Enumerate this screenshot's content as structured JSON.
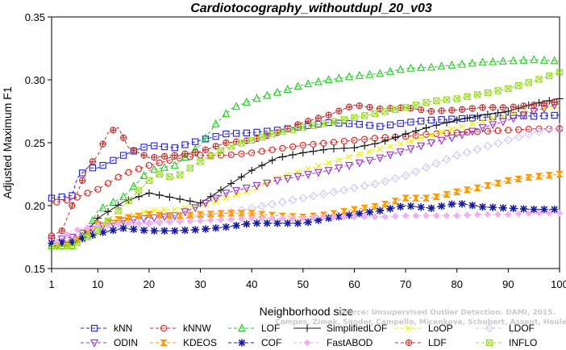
{
  "chart_data": {
    "type": "line",
    "title": "Cardiotocography_withoutdupl_20_v03",
    "xlabel": "Neighborhood size",
    "ylabel": "Adjusted Maximum F1",
    "xlim": [
      1,
      100
    ],
    "ylim": [
      0.15,
      0.35
    ],
    "xticks": [
      1,
      10,
      20,
      30,
      40,
      50,
      60,
      70,
      80,
      90,
      100
    ],
    "yticks": [
      0.15,
      0.2,
      0.25,
      0.3,
      0.35
    ],
    "xtick_labels": [
      "1",
      "10",
      "20",
      "30",
      "40",
      "50",
      "60",
      "70",
      "80",
      "90",
      "100"
    ],
    "ytick_labels": [
      "0.15",
      "0.20",
      "0.25",
      "0.30",
      "0.35"
    ],
    "grid": false,
    "legend_position": "bottom",
    "watermark": {
      "line1": "Source: Unsupervised Outlier Detection. DAMI, 2015.",
      "line2": "Campos, Zimek, Sander, Campello, Micenkova, Schubert, Assent, Houle"
    },
    "series": [
      {
        "name": "kNN",
        "color": "#1f1fe6",
        "marker": "square",
        "dash": "dashed",
        "points": [
          [
            1,
            0.206
          ],
          [
            5,
            0.208
          ],
          [
            6,
            0.222
          ],
          [
            8,
            0.23
          ],
          [
            10,
            0.23
          ],
          [
            15,
            0.24
          ],
          [
            18,
            0.245
          ],
          [
            20,
            0.248
          ],
          [
            25,
            0.246
          ],
          [
            30,
            0.252
          ],
          [
            35,
            0.257
          ],
          [
            40,
            0.258
          ],
          [
            45,
            0.26
          ],
          [
            50,
            0.263
          ],
          [
            55,
            0.266
          ],
          [
            60,
            0.265
          ],
          [
            65,
            0.263
          ],
          [
            70,
            0.266
          ],
          [
            75,
            0.268
          ],
          [
            80,
            0.269
          ],
          [
            85,
            0.27
          ],
          [
            90,
            0.272
          ],
          [
            95,
            0.271
          ],
          [
            100,
            0.272
          ]
        ]
      },
      {
        "name": "kNNW",
        "color": "#e62020",
        "marker": "circle",
        "dash": "dashed",
        "points": [
          [
            1,
            0.202
          ],
          [
            5,
            0.205
          ],
          [
            8,
            0.21
          ],
          [
            10,
            0.213
          ],
          [
            15,
            0.225
          ],
          [
            20,
            0.232
          ],
          [
            25,
            0.237
          ],
          [
            30,
            0.24
          ],
          [
            35,
            0.24
          ],
          [
            40,
            0.242
          ],
          [
            45,
            0.245
          ],
          [
            50,
            0.248
          ],
          [
            55,
            0.25
          ],
          [
            60,
            0.252
          ],
          [
            65,
            0.254
          ],
          [
            70,
            0.255
          ],
          [
            75,
            0.257
          ],
          [
            80,
            0.258
          ],
          [
            85,
            0.259
          ],
          [
            90,
            0.26
          ],
          [
            95,
            0.261
          ],
          [
            100,
            0.261
          ]
        ]
      },
      {
        "name": "LOF",
        "color": "#22cc22",
        "marker": "triangle-up",
        "dash": "dashed",
        "points": [
          [
            1,
            0.168
          ],
          [
            5,
            0.168
          ],
          [
            8,
            0.18
          ],
          [
            10,
            0.196
          ],
          [
            15,
            0.207
          ],
          [
            20,
            0.228
          ],
          [
            25,
            0.232
          ],
          [
            30,
            0.248
          ],
          [
            33,
            0.265
          ],
          [
            36,
            0.277
          ],
          [
            40,
            0.284
          ],
          [
            45,
            0.29
          ],
          [
            50,
            0.296
          ],
          [
            55,
            0.3
          ],
          [
            60,
            0.303
          ],
          [
            65,
            0.305
          ],
          [
            70,
            0.309
          ],
          [
            75,
            0.31
          ],
          [
            80,
            0.312
          ],
          [
            85,
            0.314
          ],
          [
            90,
            0.315
          ],
          [
            95,
            0.316
          ],
          [
            100,
            0.315
          ]
        ]
      },
      {
        "name": "SimplifiedLOF",
        "color": "#111111",
        "marker": "plus",
        "dash": "solid",
        "points": [
          [
            1,
            0.168
          ],
          [
            5,
            0.168
          ],
          [
            8,
            0.18
          ],
          [
            10,
            0.19
          ],
          [
            15,
            0.203
          ],
          [
            20,
            0.21
          ],
          [
            25,
            0.206
          ],
          [
            30,
            0.202
          ],
          [
            35,
            0.215
          ],
          [
            40,
            0.228
          ],
          [
            45,
            0.238
          ],
          [
            50,
            0.242
          ],
          [
            55,
            0.245
          ],
          [
            60,
            0.246
          ],
          [
            65,
            0.25
          ],
          [
            70,
            0.257
          ],
          [
            75,
            0.263
          ],
          [
            80,
            0.268
          ],
          [
            85,
            0.272
          ],
          [
            90,
            0.275
          ],
          [
            95,
            0.281
          ],
          [
            100,
            0.285
          ]
        ]
      },
      {
        "name": "LoOP",
        "color": "#f0f000",
        "marker": "cross",
        "dash": "dashed",
        "points": [
          [
            1,
            0.168
          ],
          [
            5,
            0.168
          ],
          [
            8,
            0.176
          ],
          [
            10,
            0.183
          ],
          [
            15,
            0.19
          ],
          [
            20,
            0.196
          ],
          [
            25,
            0.197
          ],
          [
            30,
            0.2
          ],
          [
            35,
            0.206
          ],
          [
            40,
            0.212
          ],
          [
            45,
            0.222
          ],
          [
            50,
            0.228
          ],
          [
            55,
            0.234
          ],
          [
            60,
            0.24
          ],
          [
            65,
            0.245
          ],
          [
            70,
            0.25
          ],
          [
            75,
            0.256
          ],
          [
            80,
            0.262
          ],
          [
            85,
            0.267
          ],
          [
            90,
            0.272
          ],
          [
            95,
            0.276
          ],
          [
            100,
            0.28
          ]
        ]
      },
      {
        "name": "LDOF",
        "color": "#c8c8f5",
        "marker": "diamond",
        "dash": "dashed",
        "points": [
          [
            1,
            0.168
          ],
          [
            5,
            0.17
          ],
          [
            10,
            0.18
          ],
          [
            15,
            0.184
          ],
          [
            20,
            0.186
          ],
          [
            25,
            0.188
          ],
          [
            30,
            0.192
          ],
          [
            35,
            0.194
          ],
          [
            40,
            0.198
          ],
          [
            45,
            0.202
          ],
          [
            50,
            0.206
          ],
          [
            55,
            0.21
          ],
          [
            60,
            0.214
          ],
          [
            65,
            0.218
          ],
          [
            70,
            0.224
          ],
          [
            75,
            0.232
          ],
          [
            80,
            0.24
          ],
          [
            85,
            0.246
          ],
          [
            90,
            0.252
          ],
          [
            95,
            0.258
          ],
          [
            100,
            0.262
          ]
        ]
      },
      {
        "name": "ODIN",
        "color": "#9933cc",
        "marker": "triangle-down",
        "dash": "dashed",
        "points": [
          [
            1,
            0.172
          ],
          [
            5,
            0.175
          ],
          [
            10,
            0.183
          ],
          [
            15,
            0.188
          ],
          [
            20,
            0.19
          ],
          [
            25,
            0.192
          ],
          [
            30,
            0.2
          ],
          [
            35,
            0.21
          ],
          [
            40,
            0.215
          ],
          [
            45,
            0.22
          ],
          [
            50,
            0.224
          ],
          [
            55,
            0.228
          ],
          [
            60,
            0.233
          ],
          [
            65,
            0.238
          ],
          [
            70,
            0.244
          ],
          [
            75,
            0.25
          ],
          [
            80,
            0.255
          ],
          [
            85,
            0.262
          ],
          [
            90,
            0.268
          ],
          [
            95,
            0.275
          ],
          [
            100,
            0.281
          ]
        ]
      },
      {
        "name": "KDEOS",
        "color": "#ff9900",
        "marker": "hourglass",
        "dash": "dashed",
        "points": [
          [
            1,
            0.168
          ],
          [
            5,
            0.17
          ],
          [
            10,
            0.185
          ],
          [
            15,
            0.19
          ],
          [
            20,
            0.193
          ],
          [
            25,
            0.192
          ],
          [
            30,
            0.193
          ],
          [
            35,
            0.194
          ],
          [
            40,
            0.194
          ],
          [
            45,
            0.192
          ],
          [
            50,
            0.191
          ],
          [
            55,
            0.193
          ],
          [
            60,
            0.197
          ],
          [
            65,
            0.2
          ],
          [
            70,
            0.206
          ],
          [
            75,
            0.206
          ],
          [
            80,
            0.211
          ],
          [
            85,
            0.215
          ],
          [
            90,
            0.22
          ],
          [
            95,
            0.223
          ],
          [
            100,
            0.225
          ]
        ]
      },
      {
        "name": "COF",
        "color": "#1a1aa0",
        "marker": "asterisk",
        "dash": "dashed",
        "points": [
          [
            1,
            0.17
          ],
          [
            5,
            0.171
          ],
          [
            10,
            0.178
          ],
          [
            15,
            0.182
          ],
          [
            20,
            0.18
          ],
          [
            25,
            0.18
          ],
          [
            30,
            0.181
          ],
          [
            35,
            0.183
          ],
          [
            40,
            0.186
          ],
          [
            45,
            0.186
          ],
          [
            50,
            0.186
          ],
          [
            55,
            0.19
          ],
          [
            60,
            0.193
          ],
          [
            65,
            0.196
          ],
          [
            70,
            0.2
          ],
          [
            75,
            0.198
          ],
          [
            80,
            0.202
          ],
          [
            85,
            0.199
          ],
          [
            90,
            0.198
          ],
          [
            95,
            0.197
          ],
          [
            100,
            0.197
          ]
        ]
      },
      {
        "name": "FastABOD",
        "color": "#f0b0f0",
        "marker": "diamond-filled",
        "dash": "dashed",
        "points": [
          [
            1,
            0.168
          ],
          [
            5,
            0.18
          ],
          [
            10,
            0.184
          ],
          [
            15,
            0.186
          ],
          [
            20,
            0.186
          ],
          [
            25,
            0.187
          ],
          [
            30,
            0.188
          ],
          [
            35,
            0.189
          ],
          [
            40,
            0.19
          ],
          [
            45,
            0.19
          ],
          [
            50,
            0.19
          ],
          [
            55,
            0.191
          ],
          [
            60,
            0.191
          ],
          [
            65,
            0.191
          ],
          [
            70,
            0.192
          ],
          [
            75,
            0.192
          ],
          [
            80,
            0.192
          ],
          [
            85,
            0.193
          ],
          [
            90,
            0.193
          ],
          [
            95,
            0.194
          ],
          [
            100,
            0.194
          ]
        ]
      },
      {
        "name": "LDF",
        "color": "#c03030",
        "marker": "circle-plus",
        "dash": "dashed",
        "points": [
          [
            1,
            0.176
          ],
          [
            3,
            0.18
          ],
          [
            5,
            0.2
          ],
          [
            8,
            0.23
          ],
          [
            10,
            0.24
          ],
          [
            12,
            0.258
          ],
          [
            14,
            0.262
          ],
          [
            16,
            0.246
          ],
          [
            18,
            0.242
          ],
          [
            20,
            0.238
          ],
          [
            25,
            0.24
          ],
          [
            30,
            0.243
          ],
          [
            35,
            0.25
          ],
          [
            40,
            0.252
          ],
          [
            45,
            0.258
          ],
          [
            50,
            0.266
          ],
          [
            55,
            0.272
          ],
          [
            60,
            0.28
          ],
          [
            65,
            0.277
          ],
          [
            70,
            0.278
          ],
          [
            75,
            0.275
          ],
          [
            80,
            0.276
          ],
          [
            85,
            0.278
          ],
          [
            90,
            0.278
          ],
          [
            95,
            0.28
          ],
          [
            100,
            0.283
          ]
        ]
      },
      {
        "name": "INFLO",
        "color": "#99dd22",
        "marker": "square-x",
        "dash": "dashed",
        "points": [
          [
            1,
            0.168
          ],
          [
            5,
            0.168
          ],
          [
            8,
            0.175
          ],
          [
            10,
            0.18
          ],
          [
            15,
            0.2
          ],
          [
            20,
            0.22
          ],
          [
            22,
            0.225
          ],
          [
            25,
            0.222
          ],
          [
            30,
            0.235
          ],
          [
            35,
            0.246
          ],
          [
            40,
            0.252
          ],
          [
            45,
            0.258
          ],
          [
            50,
            0.262
          ],
          [
            55,
            0.266
          ],
          [
            60,
            0.27
          ],
          [
            65,
            0.274
          ],
          [
            70,
            0.278
          ],
          [
            75,
            0.283
          ],
          [
            80,
            0.285
          ],
          [
            85,
            0.289
          ],
          [
            90,
            0.293
          ],
          [
            95,
            0.299
          ],
          [
            100,
            0.306
          ]
        ]
      }
    ]
  }
}
